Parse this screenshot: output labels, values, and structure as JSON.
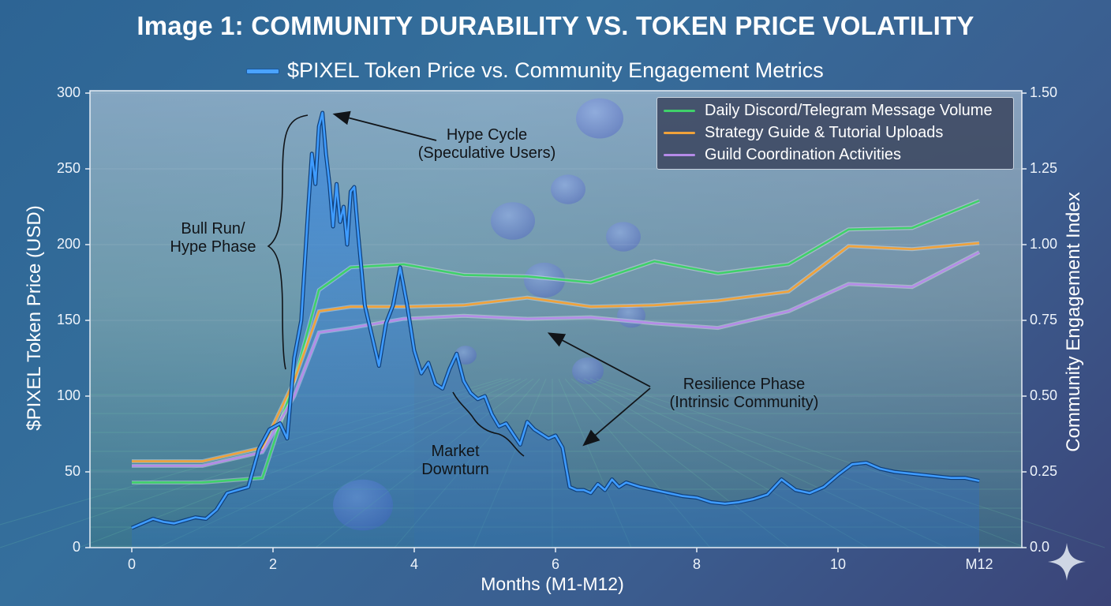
{
  "title": "Image 1: COMMUNITY DURABILITY VS. TOKEN PRICE VOLATILITY",
  "subtitle": "$PIXEL Token Price vs. Community Engagement Metrics",
  "colors": {
    "price": "#3f9cff",
    "discord": "#3fd16a",
    "guides": "#f0a23a",
    "guilds": "#b58be8"
  },
  "chart_data": {
    "type": "line",
    "title": "$PIXEL Token Price vs. Community Engagement Metrics",
    "xlabel": "Months (M1-M12)",
    "ylabel": "$PIXEL Token Price (USD)",
    "y2label": "Community Engagement Index",
    "xlim": [
      -0.5,
      12.5
    ],
    "ylim": [
      0,
      300
    ],
    "y2lim": [
      0,
      1.5
    ],
    "x_ticks": [
      {
        "value": 0,
        "label": "0"
      },
      {
        "value": 2,
        "label": "2"
      },
      {
        "value": 4,
        "label": "4"
      },
      {
        "value": 6,
        "label": "6"
      },
      {
        "value": 8,
        "label": "8"
      },
      {
        "value": 10,
        "label": "10"
      },
      {
        "value": 12,
        "label": "M12"
      }
    ],
    "y_ticks": [
      "0",
      "50",
      "100",
      "150",
      "200",
      "250",
      "300"
    ],
    "y2_ticks": [
      "0.0",
      "0.25",
      "0.50",
      "0.75",
      "1.00",
      "1.25",
      "1.50"
    ],
    "legend": [
      "Daily Discord/Telegram Message Volume",
      "Strategy Guide & Tutorial Uploads",
      "Guild Coordination Activities"
    ],
    "price_series": {
      "name": "$PIXEL Token Price",
      "axis": "left",
      "x": [
        0,
        0.15,
        0.3,
        0.45,
        0.6,
        0.75,
        0.9,
        1.05,
        1.2,
        1.35,
        1.5,
        1.65,
        1.8,
        1.95,
        2.1,
        2.2,
        2.3,
        2.4,
        2.5,
        2.55,
        2.6,
        2.65,
        2.7,
        2.75,
        2.8,
        2.85,
        2.9,
        2.95,
        3.0,
        3.05,
        3.1,
        3.15,
        3.2,
        3.3,
        3.4,
        3.5,
        3.6,
        3.7,
        3.8,
        3.9,
        4.0,
        4.1,
        4.2,
        4.3,
        4.4,
        4.5,
        4.6,
        4.7,
        4.8,
        4.9,
        5.0,
        5.1,
        5.2,
        5.3,
        5.4,
        5.5,
        5.6,
        5.7,
        5.8,
        5.9,
        6.0,
        6.1,
        6.2,
        6.3,
        6.4,
        6.5,
        6.6,
        6.7,
        6.8,
        6.9,
        7.0,
        7.2,
        7.4,
        7.6,
        7.8,
        8.0,
        8.2,
        8.4,
        8.6,
        8.8,
        9.0,
        9.2,
        9.4,
        9.6,
        9.8,
        10.0,
        10.2,
        10.4,
        10.6,
        10.8,
        11.0,
        11.2,
        11.4,
        11.6,
        11.8,
        12.0
      ],
      "values": [
        13,
        16,
        19,
        17,
        16,
        18,
        20,
        19,
        25,
        36,
        38,
        40,
        65,
        78,
        82,
        72,
        125,
        150,
        225,
        260,
        240,
        278,
        287,
        260,
        240,
        212,
        240,
        215,
        225,
        200,
        235,
        238,
        210,
        160,
        140,
        120,
        148,
        160,
        185,
        160,
        130,
        115,
        122,
        108,
        105,
        118,
        128,
        110,
        102,
        98,
        100,
        88,
        80,
        82,
        75,
        68,
        83,
        78,
        75,
        72,
        74,
        66,
        40,
        38,
        38,
        36,
        42,
        38,
        45,
        40,
        43,
        40,
        38,
        36,
        34,
        33,
        30,
        29,
        30,
        32,
        35,
        45,
        38,
        36,
        40,
        48,
        55,
        56,
        52,
        50,
        49,
        48,
        47,
        46,
        46,
        44
      ]
    },
    "series": [
      {
        "name": "Daily Discord/Telegram Message Volume",
        "axis": "right",
        "x": [
          0,
          1,
          1.85,
          2.3,
          2.65,
          3.1,
          3.85,
          4.7,
          5.6,
          6.5,
          7.4,
          8.3,
          9.3,
          10.15,
          11.05,
          12
        ],
        "values": [
          0.215,
          0.215,
          0.23,
          0.55,
          0.85,
          0.925,
          0.935,
          0.9,
          0.895,
          0.875,
          0.945,
          0.905,
          0.935,
          1.05,
          1.055,
          1.145
        ]
      },
      {
        "name": "Strategy Guide & Tutorial Uploads",
        "axis": "right",
        "x": [
          0,
          1,
          1.85,
          2.3,
          2.65,
          3.1,
          3.85,
          4.7,
          5.6,
          6.5,
          7.4,
          8.3,
          9.3,
          10.15,
          11.05,
          12
        ],
        "values": [
          0.285,
          0.285,
          0.33,
          0.55,
          0.78,
          0.795,
          0.795,
          0.8,
          0.825,
          0.795,
          0.8,
          0.815,
          0.845,
          0.995,
          0.985,
          1.005
        ]
      },
      {
        "name": "Guild Coordination Activities",
        "axis": "right",
        "x": [
          0,
          1,
          1.85,
          2.3,
          2.65,
          3.1,
          3.85,
          4.7,
          5.6,
          6.5,
          7.4,
          8.3,
          9.3,
          10.15,
          11.05,
          12
        ],
        "values": [
          0.27,
          0.27,
          0.315,
          0.5,
          0.71,
          0.725,
          0.755,
          0.765,
          0.755,
          0.76,
          0.74,
          0.725,
          0.78,
          0.87,
          0.86,
          0.975
        ]
      }
    ],
    "annotations": [
      {
        "text": "Hype Cycle\n(Speculative Users)"
      },
      {
        "text": "Bull Run/\nHype Phase"
      },
      {
        "text": "Market\nDownturn"
      },
      {
        "text": "Resilience Phase\n(Intrinsic Community)"
      }
    ]
  }
}
